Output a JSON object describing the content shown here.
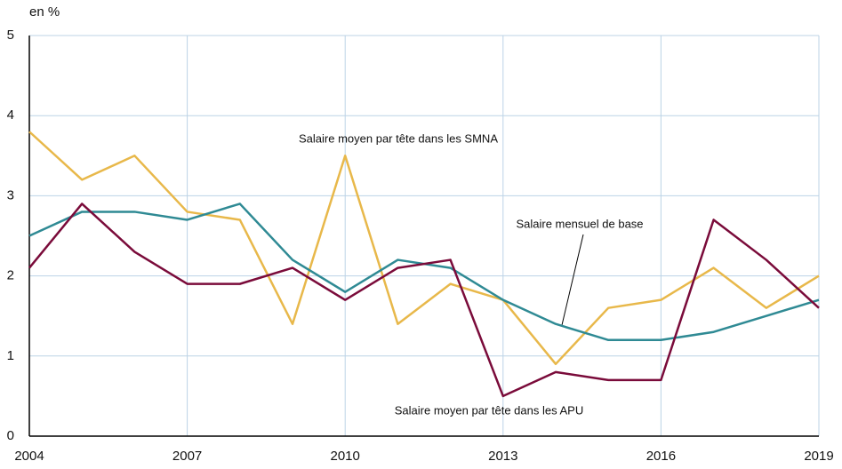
{
  "chart_data": {
    "type": "line",
    "y_label": "en %",
    "x": [
      2004,
      2005,
      2006,
      2007,
      2008,
      2009,
      2010,
      2011,
      2012,
      2013,
      2014,
      2015,
      2016,
      2017,
      2018,
      2019
    ],
    "xlim": [
      2004,
      2019
    ],
    "xticks": [
      2004,
      2007,
      2010,
      2013,
      2016,
      2019
    ],
    "ylim": [
      0,
      5
    ],
    "yticks": [
      0,
      1,
      2,
      3,
      4,
      5
    ],
    "grid": true,
    "series": [
      {
        "name": "Salaire moyen par tête dans les SMNA",
        "color": "#e8b84a",
        "values": [
          3.8,
          3.2,
          3.5,
          2.8,
          2.7,
          1.4,
          3.5,
          1.4,
          1.9,
          1.7,
          0.9,
          1.6,
          1.7,
          2.1,
          1.6,
          2.0
        ]
      },
      {
        "name": "Salaire mensuel de base",
        "color": "#2f8a94",
        "values": [
          2.5,
          2.8,
          2.8,
          2.7,
          2.9,
          2.2,
          1.8,
          2.2,
          2.1,
          1.7,
          1.4,
          1.2,
          1.2,
          1.3,
          1.5,
          1.7
        ]
      },
      {
        "name": "Salaire moyen par tête dans les APU",
        "color": "#7a0b3a",
        "values": [
          2.1,
          2.9,
          2.3,
          1.9,
          1.9,
          2.1,
          1.7,
          2.1,
          2.2,
          0.5,
          0.8,
          0.7,
          0.7,
          2.7,
          2.2,
          1.6
        ]
      }
    ]
  }
}
